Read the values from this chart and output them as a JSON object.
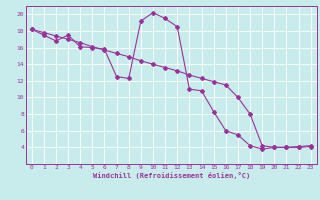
{
  "xlabel": "Windchill (Refroidissement éolien,°C)",
  "bg_color": "#c8ecec",
  "line_color": "#993399",
  "grid_color": "#ffffff",
  "xlim": [
    -0.5,
    23.5
  ],
  "ylim": [
    2,
    21
  ],
  "yticks": [
    4,
    6,
    8,
    10,
    12,
    14,
    16,
    18,
    20
  ],
  "xticks": [
    0,
    1,
    2,
    3,
    4,
    5,
    6,
    7,
    8,
    9,
    10,
    11,
    12,
    13,
    14,
    15,
    16,
    17,
    18,
    19,
    20,
    21,
    22,
    23
  ],
  "series1_x": [
    0,
    1,
    2,
    3,
    4,
    5,
    6,
    7,
    8,
    9,
    10,
    11,
    12,
    13,
    14,
    15,
    16,
    17,
    18,
    19,
    20,
    21,
    22,
    23
  ],
  "series1_y": [
    18.2,
    17.5,
    16.8,
    17.5,
    16.1,
    16.0,
    15.8,
    12.5,
    12.3,
    19.2,
    20.2,
    19.5,
    18.5,
    11.0,
    10.8,
    8.3,
    6.0,
    5.5,
    4.2,
    3.8,
    4.0,
    4.0,
    4.1,
    4.2
  ],
  "series2_x": [
    0,
    1,
    2,
    3,
    4,
    5,
    6,
    7,
    8,
    9,
    10,
    11,
    12,
    13,
    14,
    15,
    16,
    17,
    18,
    19,
    20,
    21,
    22,
    23
  ],
  "series2_y": [
    18.2,
    17.8,
    17.4,
    17.0,
    16.6,
    16.1,
    15.7,
    15.3,
    14.9,
    14.4,
    14.0,
    13.6,
    13.2,
    12.7,
    12.3,
    11.9,
    11.5,
    10.0,
    8.0,
    4.2,
    4.0,
    4.0,
    4.0,
    4.1
  ]
}
